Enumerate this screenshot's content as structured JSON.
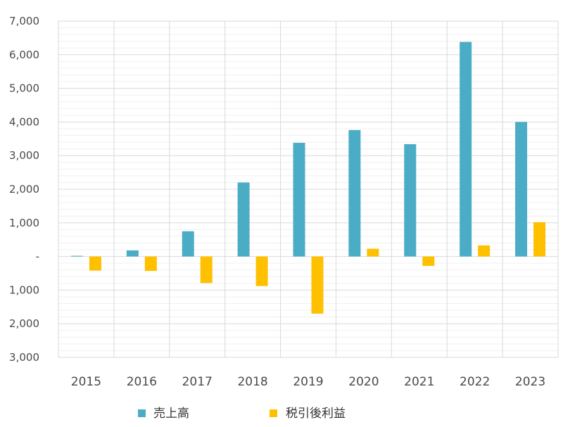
{
  "chart_data": {
    "type": "bar",
    "categories": [
      "2015",
      "2016",
      "2017",
      "2018",
      "2019",
      "2020",
      "2021",
      "2022",
      "2023"
    ],
    "series": [
      {
        "name": "売上高",
        "color": "#4bacc6",
        "values": [
          20,
          180,
          750,
          2200,
          3380,
          3760,
          3340,
          6380,
          4000
        ]
      },
      {
        "name": "税引後利益",
        "color": "#ffc000",
        "values": [
          -420,
          -430,
          -790,
          -880,
          -1700,
          230,
          -280,
          330,
          1020
        ]
      }
    ],
    "ylim": [
      -3000,
      7000
    ],
    "y_ticks": [
      {
        "value": 7000,
        "label": "7,000"
      },
      {
        "value": 6000,
        "label": "6,000"
      },
      {
        "value": 5000,
        "label": "5,000"
      },
      {
        "value": 4000,
        "label": "4,000"
      },
      {
        "value": 3000,
        "label": "3,000"
      },
      {
        "value": 2000,
        "label": "2,000"
      },
      {
        "value": 1000,
        "label": "1,000"
      },
      {
        "value": 0,
        "label": "-"
      },
      {
        "value": -1000,
        "label": "1,000"
      },
      {
        "value": -2000,
        "label": "2,000"
      },
      {
        "value": -3000,
        "label": "3,000"
      }
    ],
    "grid": true,
    "legend_position": "bottom"
  }
}
